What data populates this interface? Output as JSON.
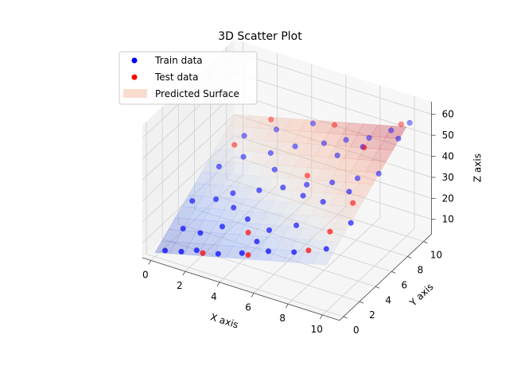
{
  "chart_data": {
    "type": "scatter3d",
    "title": "3D Scatter Plot",
    "xlabel": "X axis",
    "ylabel": "Y axis",
    "zlabel": "Z axis",
    "xlim": [
      -0.5,
      11
    ],
    "ylim": [
      -0.5,
      11
    ],
    "zlim": [
      3,
      66
    ],
    "x_ticks": [
      0,
      2,
      4,
      6,
      8,
      10
    ],
    "y_ticks": [
      0,
      2,
      4,
      6,
      8,
      10
    ],
    "z_ticks": [
      10,
      20,
      30,
      40,
      50,
      60
    ],
    "grid": true,
    "legend_position": "upper-left",
    "surface": {
      "name": "Predicted Surface",
      "model": "z = 2.0*x + 3.0*y + 5",
      "corners": [
        {
          "x": 0,
          "y": 0,
          "z": 5
        },
        {
          "x": 10,
          "y": 0,
          "z": 25
        },
        {
          "x": 10,
          "y": 10,
          "z": 55
        },
        {
          "x": 0,
          "y": 10,
          "z": 35
        }
      ],
      "colormap": "coolwarm",
      "alpha": 0.4
    },
    "series": [
      {
        "name": "Train data",
        "color": "#0000ff",
        "points": [
          [
            0.5,
            0.2,
            6.5
          ],
          [
            1.4,
            0.3,
            8.0
          ],
          [
            2.2,
            0.5,
            10.0
          ],
          [
            3.5,
            0.4,
            12.0
          ],
          [
            4.8,
            0.6,
            15.0
          ],
          [
            6.2,
            0.9,
            18.5
          ],
          [
            7.6,
            1.1,
            21.0
          ],
          [
            9.3,
            1.5,
            25.5
          ],
          [
            0.8,
            1.8,
            12.0
          ],
          [
            1.9,
            1.6,
            13.5
          ],
          [
            2.9,
            2.2,
            17.0
          ],
          [
            4.1,
            2.8,
            21.5
          ],
          [
            5.5,
            2.5,
            21.0
          ],
          [
            6.8,
            3.1,
            24.5
          ],
          [
            0.4,
            3.8,
            17.0
          ],
          [
            1.6,
            4.2,
            19.5
          ],
          [
            2.4,
            4.6,
            23.0
          ],
          [
            3.7,
            5.1,
            26.0
          ],
          [
            4.9,
            5.5,
            29.0
          ],
          [
            6.1,
            5.9,
            32.0
          ],
          [
            7.4,
            6.3,
            35.0
          ],
          [
            8.6,
            6.9,
            38.0
          ],
          [
            9.6,
            7.4,
            41.0
          ],
          [
            0.7,
            6.5,
            24.5
          ],
          [
            1.8,
            7.2,
            29.5
          ],
          [
            3.2,
            7.6,
            33.5
          ],
          [
            4.3,
            8.3,
            37.0
          ],
          [
            5.8,
            8.7,
            41.0
          ],
          [
            6.9,
            9.1,
            44.0
          ],
          [
            8.1,
            9.4,
            47.0
          ],
          [
            9.2,
            9.8,
            52.0
          ],
          [
            10.1,
            10.2,
            56.5
          ],
          [
            2.6,
            9.6,
            36.0
          ],
          [
            4.6,
            9.9,
            43.0
          ],
          [
            7.8,
            4.3,
            34.0
          ],
          [
            8.9,
            5.2,
            38.5
          ],
          [
            3.0,
            3.4,
            22.0
          ],
          [
            5.2,
            1.6,
            18.0
          ],
          [
            7.0,
            7.8,
            41.5
          ],
          [
            9.8,
            3.5,
            32.0
          ],
          [
            1.1,
            8.8,
            32.0
          ],
          [
            3.9,
            6.6,
            31.0
          ],
          [
            6.4,
            4.8,
            31.5
          ],
          [
            8.3,
            8.2,
            47.5
          ],
          [
            10.0,
            9.0,
            53.0
          ]
        ]
      },
      {
        "name": "Test data",
        "color": "#ff0000",
        "points": [
          [
            2.7,
            0.2,
            11.0
          ],
          [
            5.3,
            0.3,
            16.5
          ],
          [
            4.6,
            1.8,
            20.0
          ],
          [
            8.4,
            1.2,
            23.5
          ],
          [
            9.0,
            2.6,
            29.0
          ],
          [
            9.4,
            4.6,
            36.5
          ],
          [
            8.2,
            8.6,
            45.5
          ],
          [
            9.6,
            10.2,
            54.5
          ],
          [
            2.1,
            10.0,
            38.0
          ],
          [
            0.9,
            8.0,
            30.0
          ],
          [
            6.0,
            6.2,
            35.0
          ],
          [
            5.9,
            9.8,
            46.0
          ]
        ]
      }
    ]
  }
}
